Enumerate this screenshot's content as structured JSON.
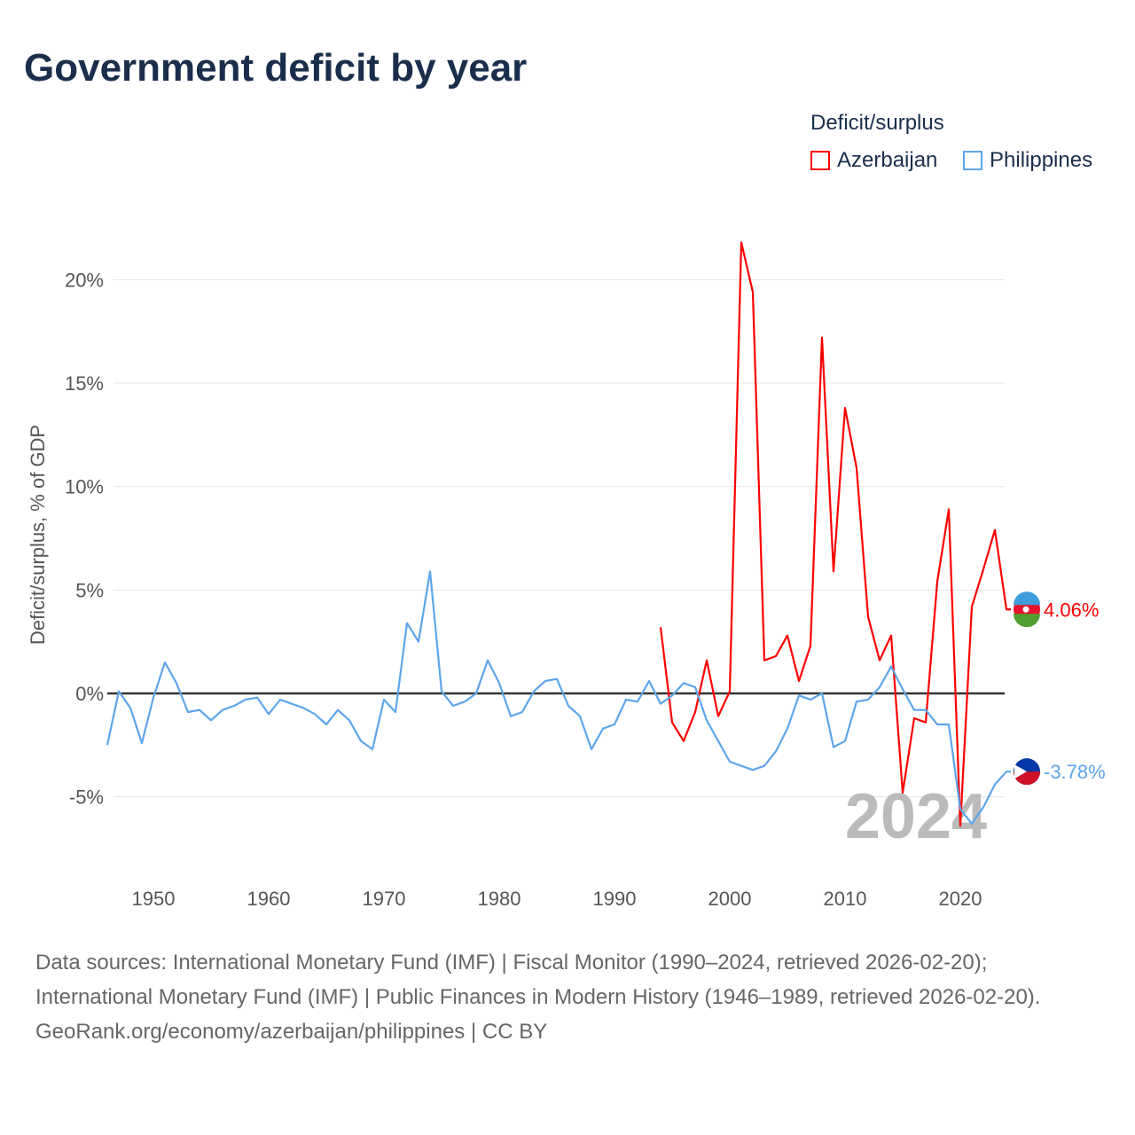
{
  "title": "Government deficit by year",
  "legend": {
    "title": "Deficit/surplus",
    "items": [
      "Azerbaijan",
      "Philippines"
    ]
  },
  "source": {
    "line1": "Data sources: International Monetary Fund (IMF) | Fiscal Monitor (1990–2024, retrieved 2026-02-20); International Monetary Fund (IMF) | Public Finances in Modern History (1946–1989, retrieved 2026-02-20).",
    "line2": "GeoRank.org/economy/azerbaijan/philippines | CC BY"
  },
  "chart_data": {
    "type": "line",
    "title": "Government deficit by year",
    "ylabel": "Deficit/surplus, % of GDP",
    "xlabel": "",
    "year_label": "2024",
    "xlim": [
      1946,
      2024
    ],
    "ylim": [
      -8.9,
      22.5
    ],
    "xticks": [
      1950,
      1960,
      1970,
      1980,
      1990,
      2000,
      2010,
      2020
    ],
    "yticks": [
      -5,
      0,
      5,
      10,
      15,
      20
    ],
    "ytick_labels": [
      "-5%",
      "0%",
      "5%",
      "10%",
      "15%",
      "20%"
    ],
    "series": [
      {
        "name": "Azerbaijan",
        "color": "#ff0000",
        "start": 1994,
        "end_label": "4.06%",
        "values": [
          3.2,
          -1.4,
          -2.3,
          -0.9,
          1.6,
          -1.1,
          0.1,
          21.8,
          19.4,
          1.6,
          1.8,
          2.8,
          0.6,
          2.3,
          17.2,
          5.9,
          13.8,
          10.9,
          3.7,
          1.6,
          2.8,
          -4.8,
          -1.2,
          -1.4,
          5.4,
          8.9,
          -6.4,
          4.2,
          6.0,
          7.9,
          4.06
        ]
      },
      {
        "name": "Philippines",
        "color": "#5da5ea",
        "start": 1946,
        "end_label": "-3.78%",
        "values": [
          -2.5,
          0.1,
          -0.7,
          -2.4,
          -0.2,
          1.5,
          0.5,
          -0.9,
          -0.8,
          -1.3,
          -0.8,
          -0.6,
          -0.3,
          -0.2,
          -1.0,
          -0.3,
          -0.5,
          -0.7,
          -1.0,
          -1.5,
          -0.8,
          -1.3,
          -2.3,
          -2.7,
          -0.3,
          -0.9,
          3.4,
          2.5,
          5.9,
          0.1,
          -0.6,
          -0.4,
          0.0,
          1.6,
          0.5,
          -1.1,
          -0.9,
          0.1,
          0.6,
          0.7,
          -0.6,
          -1.1,
          -2.7,
          -1.7,
          -1.5,
          -0.3,
          -0.4,
          0.6,
          -0.5,
          -0.1,
          0.5,
          0.3,
          -1.3,
          -2.3,
          -3.3,
          -3.5,
          -3.7,
          -3.5,
          -2.8,
          -1.7,
          -0.1,
          -0.3,
          0.0,
          -2.6,
          -2.3,
          -0.4,
          -0.3,
          0.3,
          1.3,
          0.2,
          -0.8,
          -0.8,
          -1.5,
          -1.5,
          -5.6,
          -6.3,
          -5.5,
          -4.4,
          -3.78
        ]
      }
    ],
    "legend_position": "top-right"
  }
}
